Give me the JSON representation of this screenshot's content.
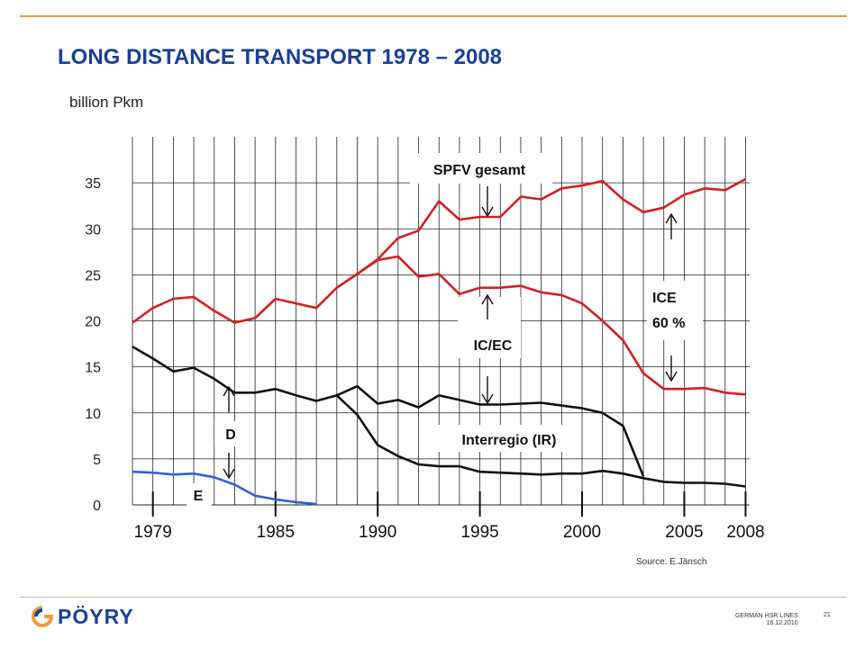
{
  "header": {
    "title": "LONG DISTANCE TRANSPORT 1978 – 2008"
  },
  "footer": {
    "source": "Source: E.Jänsch",
    "doc_name": "GERMAN HSR LINES",
    "doc_date": "16.12.2010",
    "page_number": "21",
    "logo_text": "PÖYRY"
  },
  "chart_data": {
    "type": "line",
    "ylabel": "billion Pkm",
    "ylim": [
      0,
      40
    ],
    "yticks": [
      0,
      5,
      10,
      15,
      20,
      25,
      30,
      35
    ],
    "xlim": [
      1978,
      2008.2
    ],
    "xtick_labels": [
      "1979",
      "1985",
      "1990",
      "1995",
      "2000",
      "2005",
      "2008"
    ],
    "xtick_values": [
      1979,
      1985,
      1990,
      1995,
      2000,
      2005,
      2008
    ],
    "grid": true,
    "series": [
      {
        "name": "SPFV gesamt",
        "color": "#d42020",
        "x": [
          1978,
          1979,
          1980,
          1981,
          1982,
          1983,
          1984,
          1985,
          1986,
          1987,
          1988,
          1989,
          1990,
          1991,
          1992,
          1993,
          1994,
          1995,
          1996,
          1997,
          1998,
          1999,
          2000,
          2001,
          2002,
          2003,
          2004,
          2005,
          2006,
          2007,
          2008
        ],
        "y": [
          19.8,
          21.4,
          22.4,
          22.6,
          21.1,
          19.8,
          20.3,
          22.4,
          21.9,
          21.4,
          23.6,
          25.1,
          26.7,
          29.0,
          29.8,
          33.0,
          31.0,
          31.3,
          31.3,
          33.5,
          33.2,
          34.4,
          34.7,
          35.2,
          33.2,
          31.8,
          32.3,
          33.7,
          34.4,
          34.2,
          35.4
        ]
      },
      {
        "name": "IC/EC",
        "color": "#d42020",
        "x": [
          1988,
          1989,
          1990,
          1991,
          1992,
          1993,
          1994,
          1995,
          1996,
          1997,
          1998,
          1999,
          2000,
          2001,
          2002,
          2003,
          2004,
          2005,
          2006,
          2007,
          2008
        ],
        "y": [
          23.6,
          25.1,
          26.6,
          27.0,
          24.8,
          25.1,
          22.9,
          23.6,
          23.6,
          23.8,
          23.1,
          22.8,
          21.9,
          20.0,
          17.9,
          14.3,
          12.6,
          12.6,
          12.7,
          12.2,
          12.0
        ]
      },
      {
        "name": "D",
        "color": "#111111",
        "x": [
          1978,
          1979,
          1980,
          1981,
          1982,
          1983,
          1984,
          1985,
          1986,
          1987,
          1988,
          1989,
          1990,
          1991,
          1992,
          1993,
          1994,
          1995,
          1996,
          1997,
          1998,
          1999,
          2000,
          2001,
          2002,
          2003
        ],
        "y": [
          17.2,
          15.9,
          14.5,
          14.9,
          13.7,
          12.2,
          12.2,
          12.6,
          11.9,
          11.3,
          11.9,
          12.9,
          11.0,
          11.4,
          10.6,
          11.9,
          11.4,
          10.9,
          10.9,
          11.0,
          11.1,
          10.8,
          10.5,
          10.0,
          8.6,
          3.1
        ]
      },
      {
        "name": "Interregio (IR)",
        "color": "#111111",
        "x": [
          1988,
          1989,
          1990,
          1991,
          1992,
          1993,
          1994,
          1995,
          1996,
          1997,
          1998,
          1999,
          2000,
          2001,
          2002,
          2003,
          2004,
          2005,
          2006,
          2007,
          2008
        ],
        "y": [
          11.9,
          9.8,
          6.5,
          5.3,
          4.4,
          4.2,
          4.2,
          3.6,
          3.5,
          3.4,
          3.3,
          3.4,
          3.4,
          3.7,
          3.4,
          2.9,
          2.5,
          2.4,
          2.4,
          2.3,
          2.0
        ]
      },
      {
        "name": "E",
        "color": "#2f62d8",
        "x": [
          1978,
          1979,
          1980,
          1981,
          1982,
          1983,
          1984,
          1985,
          1986,
          1987
        ],
        "y": [
          3.6,
          3.5,
          3.3,
          3.4,
          3.0,
          2.2,
          1.0,
          0.6,
          0.3,
          0.1
        ]
      }
    ],
    "annotations": [
      {
        "text": "SPFV gesamt",
        "arrow": "down"
      },
      {
        "text": "IC/EC",
        "arrow_up": true,
        "arrow_down": true
      },
      {
        "text": "ICE",
        "text2": "60 %",
        "arrow_up": true,
        "arrow_down": true
      },
      {
        "text": "Interregio (IR)"
      },
      {
        "text": "D",
        "arrow_up": true,
        "arrow_down": true
      },
      {
        "text": "E"
      }
    ]
  }
}
